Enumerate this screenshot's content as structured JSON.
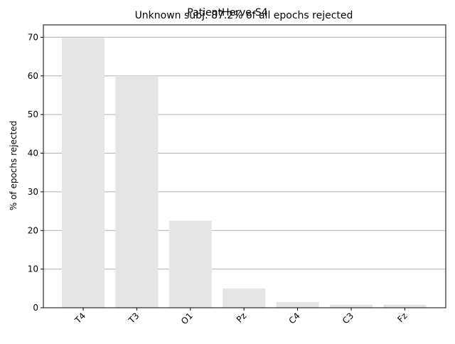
{
  "chart_data": {
    "type": "bar",
    "suptitle": "PatientHerve-S4",
    "title": "Unknown subj: 87.2% of all epochs rejected",
    "xlabel": "",
    "ylabel": "% of epochs rejected",
    "categories": [
      "T4",
      "T3",
      "O1",
      "Pz",
      "C4",
      "C3",
      "Fz"
    ],
    "values": [
      69.8,
      60.0,
      22.5,
      5.0,
      1.5,
      0.8,
      0.8
    ],
    "ylim": [
      0,
      73.2
    ],
    "yticks": [
      0,
      10,
      20,
      30,
      40,
      50,
      60,
      70
    ],
    "grid": "y",
    "bar_color": "#e5e5e5",
    "grid_color": "#b0b0b0",
    "axis_color": "#000000"
  }
}
